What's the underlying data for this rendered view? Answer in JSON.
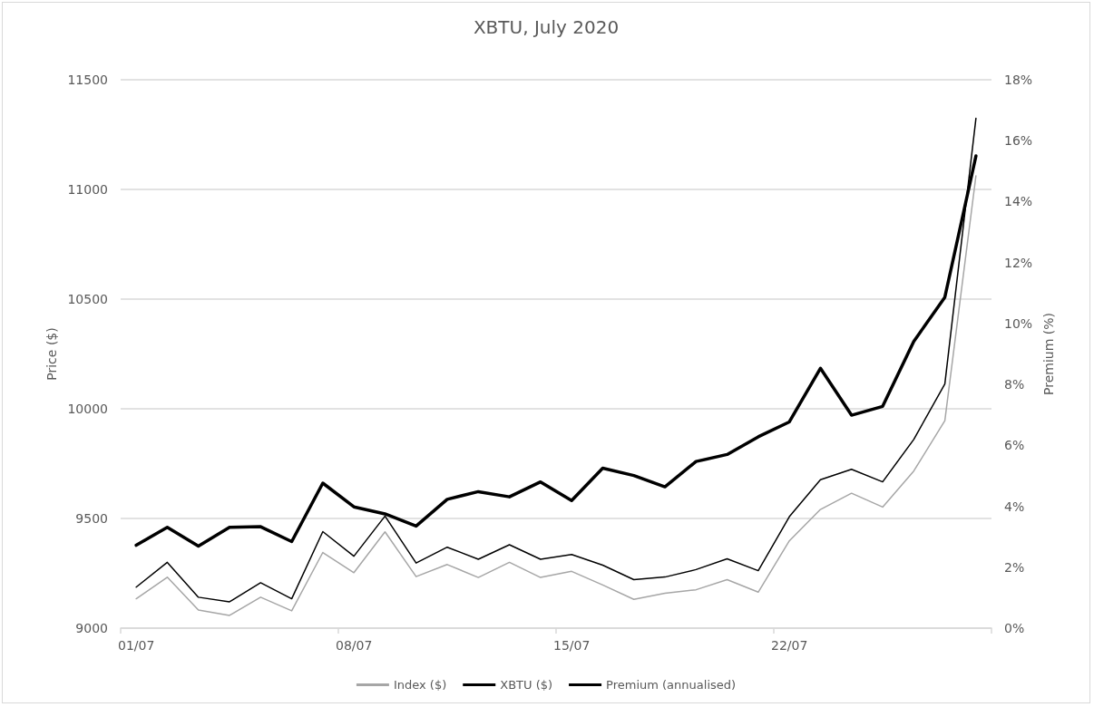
{
  "chart_data": {
    "type": "line",
    "title": "XBTU, July 2020",
    "ylabel": "Price ($)",
    "y2label": "Premium (%)",
    "categories": [
      "01/07",
      null,
      null,
      null,
      null,
      null,
      null,
      "08/07",
      null,
      null,
      null,
      null,
      null,
      null,
      "15/07",
      null,
      null,
      null,
      null,
      null,
      null,
      "22/07",
      null,
      null,
      null,
      null,
      null,
      null
    ],
    "ylim": [
      9000,
      11500
    ],
    "yticks": [
      9000,
      9500,
      10000,
      10500,
      11000,
      11500
    ],
    "y2lim": [
      0,
      18
    ],
    "y2ticks": [
      {
        "value": 0,
        "label": "0%"
      },
      {
        "value": 2,
        "label": "2%"
      },
      {
        "value": 4,
        "label": "4%"
      },
      {
        "value": 6,
        "label": "6%"
      },
      {
        "value": 8,
        "label": "8%"
      },
      {
        "value": 10,
        "label": "10%"
      },
      {
        "value": 12,
        "label": "12%"
      },
      {
        "value": 14,
        "label": "14%"
      },
      {
        "value": 16,
        "label": "16%"
      },
      {
        "value": 18,
        "label": "18%"
      }
    ],
    "grid": "y",
    "legend": "bottom",
    "marker": "none",
    "line_style": "solid",
    "series": [
      {
        "name": "Index ($)",
        "color": "#a6a6a6",
        "values": [
          9134,
          9232,
          9083,
          9058,
          9141,
          9079,
          9345,
          9253,
          9439,
          9235,
          9290,
          9231,
          9300,
          9231,
          9259,
          9197,
          9131,
          9159,
          9175,
          9221,
          9164,
          9398,
          9541,
          9615,
          9552,
          9716,
          9946,
          11062
        ]
      },
      {
        "name": "XBTU ($)",
        "color": "#000000",
        "values": [
          9187,
          9300,
          9141,
          9120,
          9207,
          9134,
          9440,
          9328,
          9511,
          9297,
          9369,
          9314,
          9380,
          9314,
          9336,
          9287,
          9221,
          9233,
          9267,
          9316,
          9262,
          9508,
          9677,
          9724,
          9667,
          9860,
          10113,
          11324
        ]
      },
      {
        "name": "Premium (annualised)",
        "color": "#000000",
        "axis": "y2",
        "values": [
          2.72,
          3.31,
          2.69,
          3.31,
          3.33,
          2.84,
          4.76,
          3.98,
          3.75,
          3.35,
          4.23,
          4.48,
          4.31,
          4.8,
          4.19,
          5.25,
          5.01,
          4.64,
          5.47,
          5.7,
          6.28,
          6.77,
          8.53,
          6.99,
          7.28,
          9.41,
          10.86,
          15.5
        ]
      }
    ]
  }
}
